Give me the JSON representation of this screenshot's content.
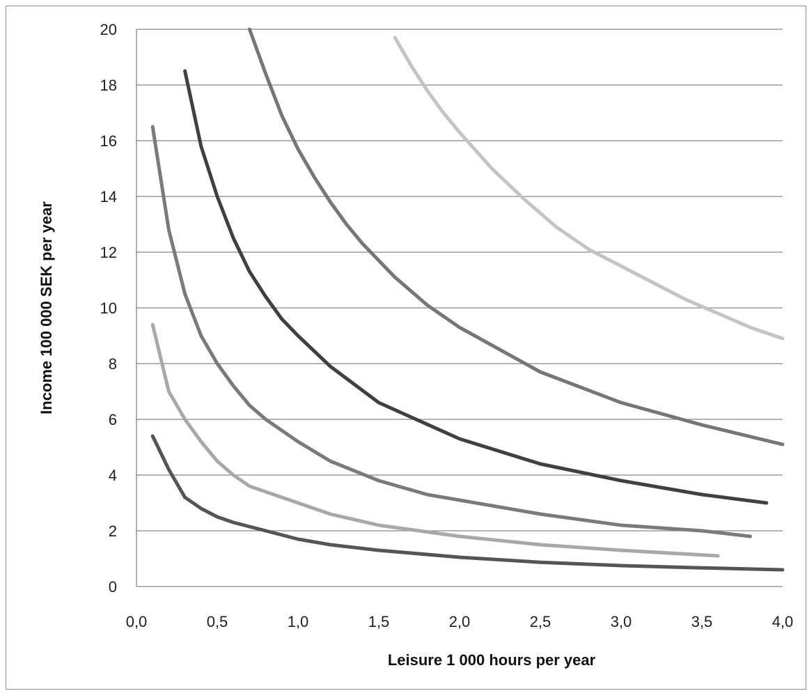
{
  "chart_data": {
    "type": "line",
    "title": "",
    "xlabel": "Leisure 1 000 hours per year",
    "ylabel": "Income 100 000 SEK per year",
    "xlim": [
      0,
      4
    ],
    "ylim": [
      0,
      20
    ],
    "x_ticks": [
      "0,0",
      "0,5",
      "1,0",
      "1,5",
      "2,0",
      "2,5",
      "3,0",
      "3,5",
      "4,0"
    ],
    "y_ticks": [
      "0",
      "2",
      "4",
      "6",
      "8",
      "10",
      "12",
      "14",
      "16",
      "18",
      "20"
    ],
    "grid": "horizontal",
    "legend": "none",
    "series": [
      {
        "color": "#555555",
        "x": [
          0.1,
          0.2,
          0.3,
          0.4,
          0.5,
          0.6,
          0.7,
          0.8,
          1.0,
          1.2,
          1.5,
          2.0,
          2.5,
          3.0,
          3.5,
          4.0
        ],
        "values": [
          5.4,
          4.2,
          3.2,
          2.8,
          2.5,
          2.3,
          2.15,
          2.0,
          1.7,
          1.5,
          1.3,
          1.05,
          0.87,
          0.75,
          0.67,
          0.6
        ]
      },
      {
        "color": "#a8a8a8",
        "x": [
          0.1,
          0.2,
          0.3,
          0.4,
          0.5,
          0.6,
          0.7,
          0.8,
          1.0,
          1.2,
          1.5,
          2.0,
          2.5,
          3.0,
          3.6
        ],
        "values": [
          9.4,
          7.0,
          6.0,
          5.2,
          4.5,
          4.0,
          3.6,
          3.4,
          3.0,
          2.6,
          2.2,
          1.8,
          1.5,
          1.3,
          1.1
        ]
      },
      {
        "color": "#7a7a7a",
        "x": [
          0.1,
          0.2,
          0.3,
          0.4,
          0.5,
          0.6,
          0.7,
          0.8,
          1.0,
          1.2,
          1.5,
          1.8,
          2.0,
          2.5,
          3.0,
          3.5,
          3.8
        ],
        "values": [
          16.5,
          12.8,
          10.5,
          9.0,
          8.0,
          7.2,
          6.5,
          6.0,
          5.2,
          4.5,
          3.8,
          3.3,
          3.1,
          2.6,
          2.2,
          2.0,
          1.8
        ]
      },
      {
        "color": "#404040",
        "x": [
          0.3,
          0.4,
          0.5,
          0.6,
          0.7,
          0.8,
          0.9,
          1.0,
          1.2,
          1.5,
          2.0,
          2.5,
          3.0,
          3.5,
          3.9
        ],
        "values": [
          18.5,
          15.8,
          14.0,
          12.5,
          11.3,
          10.4,
          9.6,
          9.0,
          7.9,
          6.6,
          5.3,
          4.4,
          3.8,
          3.3,
          3.0
        ]
      },
      {
        "color": "#767676",
        "x": [
          0.7,
          0.8,
          0.9,
          1.0,
          1.1,
          1.2,
          1.3,
          1.4,
          1.5,
          1.6,
          1.8,
          2.0,
          2.5,
          3.0,
          3.5,
          4.0
        ],
        "values": [
          20.0,
          18.4,
          16.9,
          15.7,
          14.7,
          13.8,
          13.0,
          12.3,
          11.7,
          11.1,
          10.1,
          9.3,
          7.7,
          6.6,
          5.8,
          5.1
        ]
      },
      {
        "color": "#c4c4c4",
        "x": [
          1.6,
          1.7,
          1.8,
          1.9,
          2.0,
          2.2,
          2.4,
          2.6,
          2.8,
          3.0,
          3.2,
          3.4,
          3.6,
          3.8,
          4.0
        ],
        "values": [
          19.7,
          18.7,
          17.8,
          17.0,
          16.3,
          15.0,
          13.9,
          12.9,
          12.1,
          11.5,
          10.9,
          10.3,
          9.8,
          9.3,
          8.9
        ]
      }
    ]
  }
}
